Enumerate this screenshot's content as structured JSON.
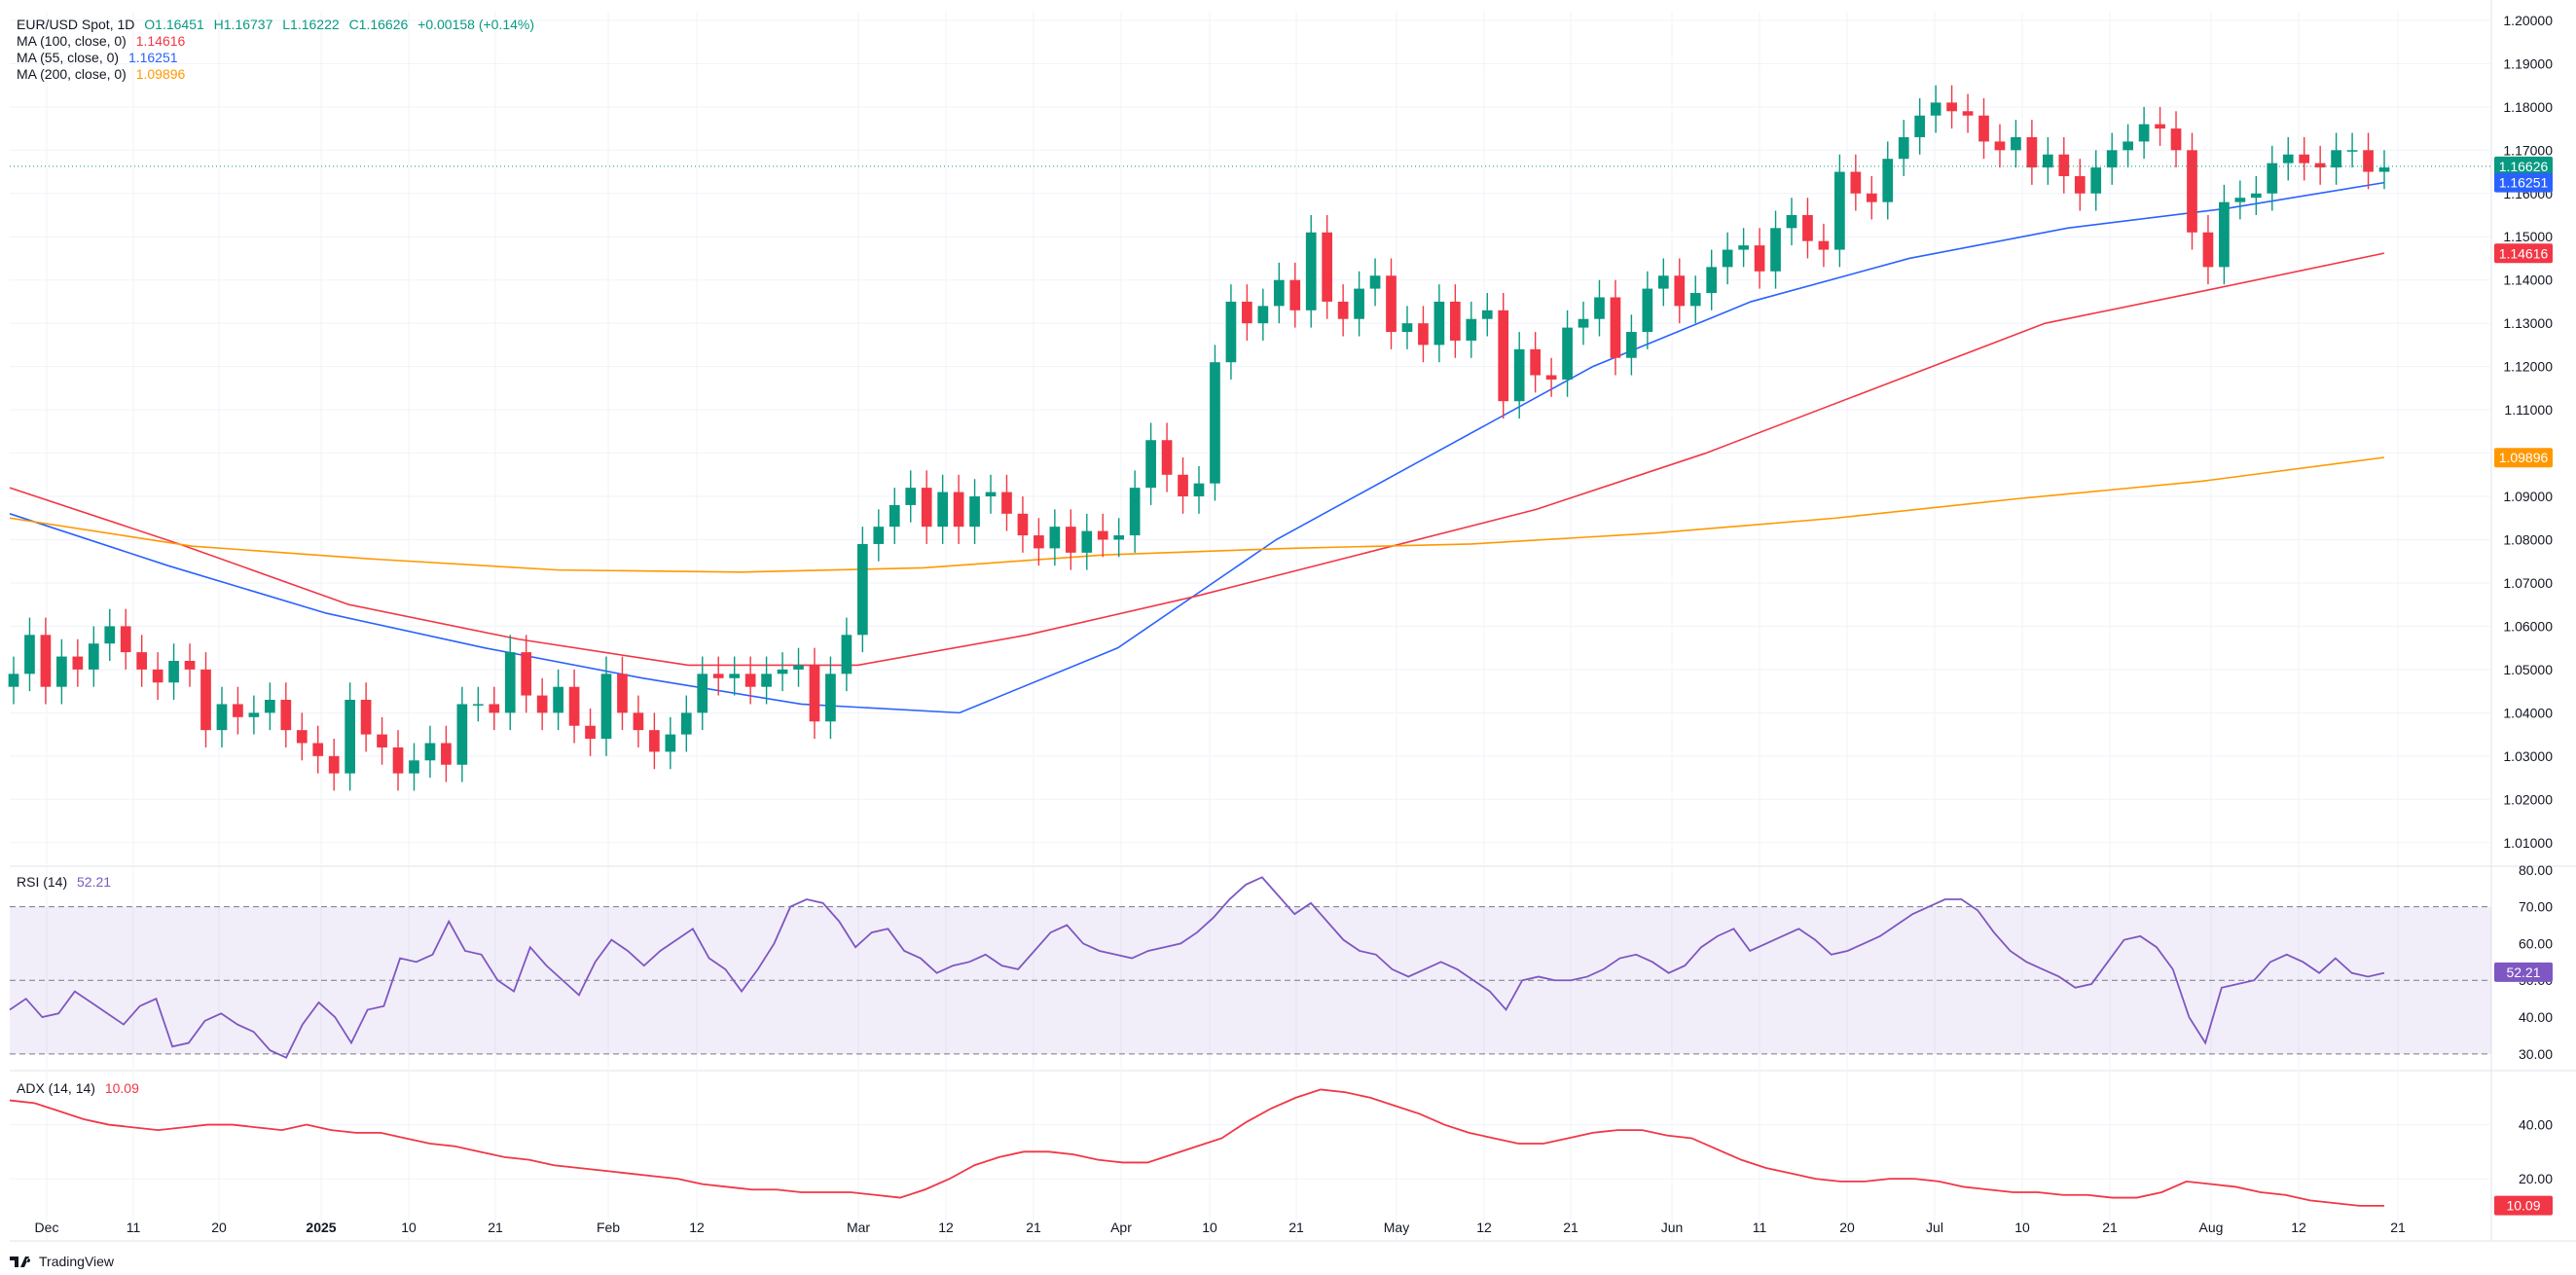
{
  "app": {
    "brand": "TradingView"
  },
  "main_legend": {
    "symbol": "EUR/USD Spot, 1D",
    "ohlc": {
      "o": "O1.16451",
      "h": "H1.16737",
      "l": "L1.16222",
      "c": "C1.16626",
      "chg": "+0.00158 (+0.14%)"
    },
    "ma100_label": "MA (100, close, 0)",
    "ma100_value": "1.14616",
    "ma55_label": "MA (55, close, 0)",
    "ma55_value": "1.16251",
    "ma200_label": "MA (200, close, 0)",
    "ma200_value": "1.09896"
  },
  "rsi_legend": {
    "label": "RSI (14)",
    "value": "52.21"
  },
  "adx_legend": {
    "label": "ADX (14, 14)",
    "value": "10.09"
  },
  "colors": {
    "up": "#089981",
    "down": "#f23645",
    "ma55": "#2962ff",
    "ma100": "#f23645",
    "ma200": "#ff9800",
    "rsi": "#7e57c2",
    "adx": "#f23645"
  },
  "chart_data": [
    {
      "type": "candlestick",
      "title": "EUR/USD Spot, 1D",
      "y_ticks": [
        "1.20000",
        "1.19000",
        "1.18000",
        "1.17000",
        "1.16000",
        "1.15000",
        "1.14000",
        "1.13000",
        "1.12000",
        "1.11000",
        "1.10000",
        "1.09000",
        "1.08000",
        "1.07000",
        "1.06000",
        "1.05000",
        "1.04000",
        "1.03000",
        "1.02000",
        "1.01000"
      ],
      "ylim": [
        1.005,
        1.202
      ],
      "x_ticks": [
        "Dec",
        "11",
        "20",
        "2025",
        "10",
        "21",
        "Feb",
        "12",
        "Mar",
        "12",
        "21",
        "Apr",
        "10",
        "21",
        "May",
        "12",
        "21",
        "Jun",
        "11",
        "20",
        "Jul",
        "10",
        "21",
        "Aug",
        "12",
        "21"
      ],
      "price_labels": [
        {
          "text": "1.16626",
          "value": 1.16626,
          "color": "#089981"
        },
        {
          "text": "1.16251",
          "value": 1.16251,
          "color": "#2962ff"
        },
        {
          "text": "1.14616",
          "value": 1.14616,
          "color": "#f23645"
        },
        {
          "text": "1.09896",
          "value": 1.09896,
          "color": "#ff9800"
        }
      ],
      "series": [
        {
          "name": "MA (55, close, 0)",
          "values": [
            1.086,
            1.074,
            1.063,
            1.055,
            1.048,
            1.042,
            1.04,
            1.055,
            1.08,
            1.1,
            1.12,
            1.135,
            1.145,
            1.152,
            1.1565,
            1.1625
          ]
        },
        {
          "name": "MA (100, close, 0)",
          "values": [
            1.092,
            1.079,
            1.065,
            1.057,
            1.051,
            1.051,
            1.058,
            1.067,
            1.077,
            1.087,
            1.1,
            1.115,
            1.13,
            1.138,
            1.1462
          ]
        },
        {
          "name": "MA (200, close, 0)",
          "values": [
            1.085,
            1.0785,
            1.0755,
            1.073,
            1.0725,
            1.0735,
            1.0765,
            1.078,
            1.079,
            1.0815,
            1.085,
            1.0895,
            1.0935,
            1.099
          ]
        }
      ],
      "closes": [
        1.049,
        1.058,
        1.046,
        1.053,
        1.05,
        1.056,
        1.06,
        1.054,
        1.05,
        1.047,
        1.052,
        1.05,
        1.036,
        1.042,
        1.039,
        1.04,
        1.043,
        1.036,
        1.033,
        1.03,
        1.026,
        1.043,
        1.035,
        1.032,
        1.026,
        1.029,
        1.033,
        1.028,
        1.042,
        1.042,
        1.04,
        1.054,
        1.044,
        1.04,
        1.046,
        1.037,
        1.034,
        1.049,
        1.04,
        1.036,
        1.031,
        1.035,
        1.04,
        1.049,
        1.048,
        1.049,
        1.046,
        1.049,
        1.05,
        1.051,
        1.038,
        1.049,
        1.058,
        1.079,
        1.083,
        1.088,
        1.092,
        1.083,
        1.091,
        1.083,
        1.09,
        1.091,
        1.086,
        1.081,
        1.078,
        1.083,
        1.077,
        1.082,
        1.08,
        1.081,
        1.092,
        1.103,
        1.095,
        1.09,
        1.093,
        1.121,
        1.135,
        1.13,
        1.134,
        1.14,
        1.133,
        1.151,
        1.135,
        1.131,
        1.138,
        1.141,
        1.128,
        1.13,
        1.125,
        1.135,
        1.126,
        1.131,
        1.133,
        1.112,
        1.124,
        1.118,
        1.117,
        1.129,
        1.131,
        1.136,
        1.122,
        1.128,
        1.138,
        1.141,
        1.134,
        1.137,
        1.143,
        1.147,
        1.148,
        1.142,
        1.152,
        1.155,
        1.149,
        1.147,
        1.165,
        1.16,
        1.158,
        1.168,
        1.173,
        1.178,
        1.181,
        1.179,
        1.178,
        1.172,
        1.17,
        1.173,
        1.166,
        1.169,
        1.164,
        1.16,
        1.166,
        1.17,
        1.172,
        1.176,
        1.175,
        1.17,
        1.151,
        1.143,
        1.158,
        1.159,
        1.16,
        1.167,
        1.169,
        1.167,
        1.166,
        1.17,
        1.17,
        1.165,
        1.166
      ]
    },
    {
      "type": "line",
      "title": "RSI (14)",
      "y_ticks": [
        "80.00",
        "70.00",
        "60.00",
        "50.00",
        "40.00",
        "30.00"
      ],
      "ylim": [
        26,
        81
      ],
      "bands": [
        70,
        50,
        30
      ],
      "series": [
        {
          "name": "RSI (14)",
          "values": [
            42,
            45,
            40,
            41,
            47,
            44,
            41,
            38,
            43,
            45,
            32,
            33,
            39,
            41,
            38,
            36,
            31,
            29,
            38,
            44,
            40,
            33,
            42,
            43,
            56,
            55,
            57,
            66,
            58,
            57,
            50,
            47,
            59,
            54,
            50,
            46,
            55,
            61,
            58,
            54,
            58,
            61,
            64,
            56,
            53,
            47,
            53,
            60,
            70,
            72,
            71,
            66,
            59,
            63,
            64,
            58,
            56,
            52,
            54,
            55,
            57,
            54,
            53,
            58,
            63,
            65,
            60,
            58,
            57,
            56,
            58,
            59,
            60,
            63,
            67,
            72,
            76,
            78,
            73,
            68,
            71,
            66,
            61,
            58,
            57,
            53,
            51,
            53,
            55,
            53,
            50,
            47,
            42,
            50,
            51,
            50,
            50,
            51,
            53,
            56,
            57,
            55,
            52,
            54,
            59,
            62,
            64,
            58,
            60,
            62,
            64,
            61,
            57,
            58,
            60,
            62,
            65,
            68,
            70,
            72,
            72,
            69,
            63,
            58,
            55,
            53,
            51,
            48,
            49,
            55,
            61,
            62,
            59,
            53,
            40,
            33,
            48,
            49,
            50,
            55,
            57,
            55,
            52,
            56,
            52,
            51,
            52
          ]
        }
      ]
    },
    {
      "type": "line",
      "title": "ADX (14, 14)",
      "y_ticks": [
        "40.00",
        "20.00"
      ],
      "ylim": [
        6,
        60
      ],
      "series": [
        {
          "name": "ADX (14, 14)",
          "values": [
            49,
            48,
            45,
            42,
            40,
            39,
            38,
            39,
            40,
            40,
            39,
            38,
            40,
            38,
            37,
            37,
            35,
            33,
            32,
            30,
            28,
            27,
            25,
            24,
            23,
            22,
            21,
            20,
            18,
            17,
            16,
            16,
            15,
            15,
            15,
            14,
            13,
            16,
            20,
            25,
            28,
            30,
            30,
            29,
            27,
            26,
            26,
            29,
            32,
            35,
            41,
            46,
            50,
            53,
            52,
            50,
            47,
            44,
            40,
            37,
            35,
            33,
            33,
            35,
            37,
            38,
            38,
            36,
            35,
            31,
            27,
            24,
            22,
            20,
            19,
            19,
            20,
            20,
            19,
            17,
            16,
            15,
            15,
            14,
            14,
            13,
            13,
            15,
            19,
            18,
            17,
            15,
            14,
            12,
            11,
            10,
            10
          ]
        }
      ]
    }
  ]
}
